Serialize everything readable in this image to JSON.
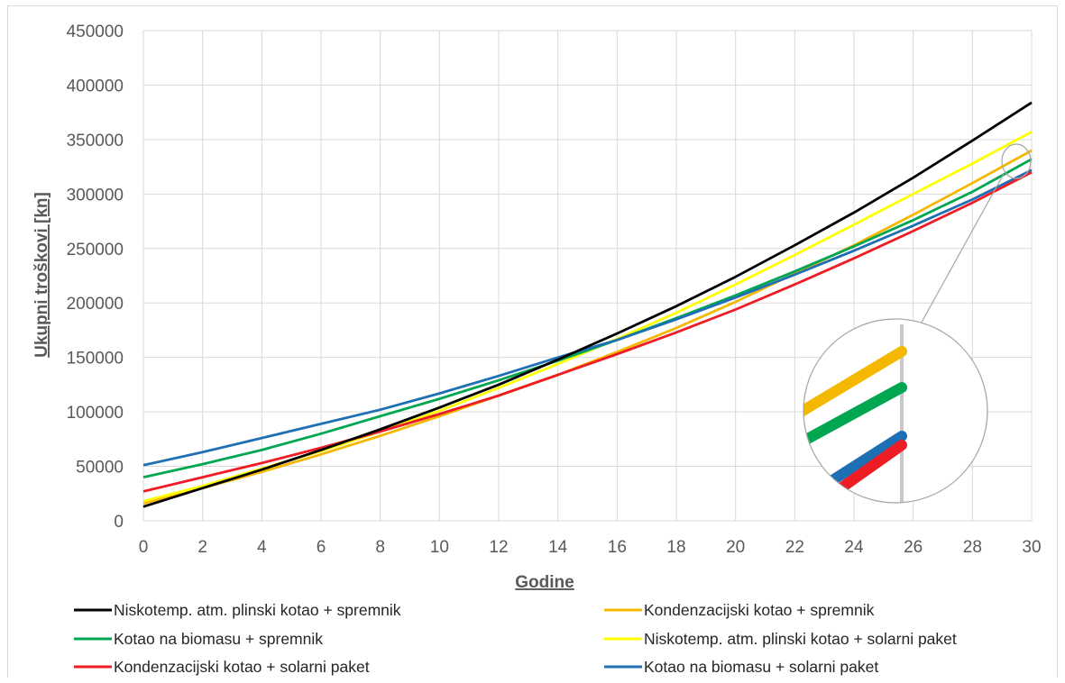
{
  "chart_data": {
    "type": "line",
    "title": "",
    "xlabel": "Godine",
    "ylabel": "Ukupni troškovi [kn]",
    "xlim": [
      0,
      30
    ],
    "ylim": [
      0,
      450000
    ],
    "x_ticks": [
      "0",
      "2",
      "4",
      "6",
      "8",
      "10",
      "12",
      "14",
      "16",
      "18",
      "20",
      "22",
      "24",
      "26",
      "28",
      "30"
    ],
    "y_ticks": [
      "0",
      "50000",
      "100000",
      "150000",
      "200000",
      "250000",
      "300000",
      "350000",
      "400000",
      "450000"
    ],
    "grid": true,
    "legend_position": "bottom",
    "zoom_inset": true,
    "x": [
      0,
      2,
      4,
      6,
      8,
      10,
      12,
      14,
      16,
      18,
      20,
      22,
      24,
      26,
      28,
      30
    ],
    "series": [
      {
        "name": "Niskotemp. atm. plinski kotao + spremnik",
        "color": "#000000",
        "values": [
          13000,
          30000,
          47000,
          65000,
          84000,
          104000,
          125000,
          148000,
          172000,
          197000,
          224000,
          253000,
          283000,
          315000,
          349000,
          384000
        ]
      },
      {
        "name": "Kondenzacijski kotao + spremnik",
        "color": "#f5b800",
        "values": [
          16000,
          30000,
          45000,
          61000,
          78000,
          96000,
          115000,
          134000,
          155000,
          177000,
          201000,
          227000,
          253000,
          281000,
          310000,
          340000
        ]
      },
      {
        "name": "Kotao na biomasu + spremnik",
        "color": "#00a650",
        "values": [
          40000,
          52000,
          65000,
          80000,
          96000,
          112000,
          129000,
          147000,
          166000,
          186000,
          207000,
          229000,
          252000,
          276000,
          302000,
          332000
        ]
      },
      {
        "name": "Niskotemp. atm. plinski kotao + solarni paket",
        "color": "#ffff00",
        "values": [
          18000,
          32000,
          48000,
          64000,
          82000,
          101000,
          122000,
          144000,
          167000,
          191000,
          217000,
          244000,
          272000,
          300000,
          328000,
          357000
        ]
      },
      {
        "name": "Kondenzacijski kotao + solarni paket",
        "color": "#ee1c25",
        "values": [
          27000,
          40000,
          53000,
          67000,
          82000,
          98000,
          115000,
          134000,
          153000,
          173000,
          194000,
          217000,
          241000,
          266000,
          292000,
          320000
        ]
      },
      {
        "name": "Kotao na biomasu + solarni paket",
        "color": "#1f6fb5",
        "values": [
          51000,
          63000,
          76000,
          89000,
          102000,
          117000,
          133000,
          150000,
          166000,
          185000,
          205000,
          226000,
          248000,
          271000,
          295000,
          322000
        ]
      }
    ]
  }
}
